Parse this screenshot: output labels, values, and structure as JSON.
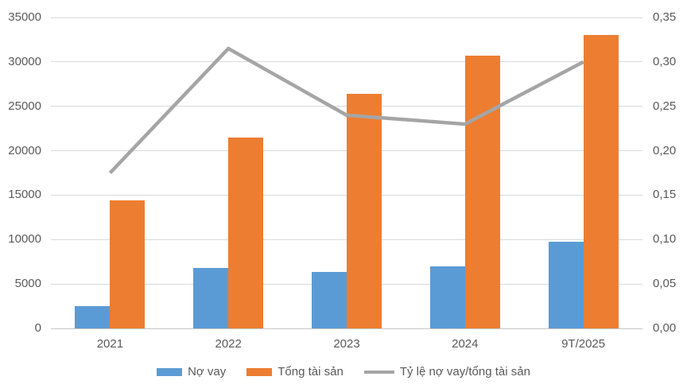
{
  "chart_data": {
    "type": "combo-bar-line",
    "title": "",
    "xlabel": "",
    "ylabel": "",
    "categories": [
      "2021",
      "2022",
      "2023",
      "2024",
      "9T/2025"
    ],
    "series": [
      {
        "name": "Nợ vay",
        "type": "bar",
        "axis": "left",
        "color": "#5B9BD5",
        "values": [
          2500,
          6800,
          6400,
          7000,
          9800
        ]
      },
      {
        "name": "Tổng tài sản",
        "type": "bar",
        "axis": "left",
        "color": "#ED7D31",
        "values": [
          14400,
          21500,
          26400,
          30700,
          33000
        ]
      },
      {
        "name": "Tỷ lệ nợ vay/tổng tài sản",
        "type": "line",
        "axis": "right",
        "color": "#A5A5A5",
        "values": [
          0.175,
          0.315,
          0.24,
          0.23,
          0.3
        ]
      }
    ],
    "left_axis": {
      "min": 0,
      "max": 35000,
      "step": 5000,
      "tick_labels": [
        "0",
        "5000",
        "10000",
        "15000",
        "20000",
        "25000",
        "30000",
        "35000"
      ]
    },
    "right_axis": {
      "min": 0,
      "max": 0.35,
      "step": 0.05,
      "tick_labels": [
        "0,00",
        "0,05",
        "0,10",
        "0,15",
        "0,20",
        "0,25",
        "0,30",
        "0,35"
      ]
    },
    "grid": true,
    "legend_position": "bottom"
  },
  "legend": {
    "items": [
      {
        "label": "Nợ vay",
        "color": "#5B9BD5",
        "marker": "rect"
      },
      {
        "label": "Tổng tài sản",
        "color": "#ED7D31",
        "marker": "rect"
      },
      {
        "label": "Tỷ lệ nợ vay/tổng tài sản",
        "color": "#A5A5A5",
        "marker": "line"
      }
    ]
  },
  "colors": {
    "bar_blue": "#5B9BD5",
    "bar_orange": "#ED7D31",
    "line_gray": "#A5A5A5",
    "gridline": "#D9D9D9",
    "axis_text": "#595959",
    "background": "#FFFFFF"
  }
}
